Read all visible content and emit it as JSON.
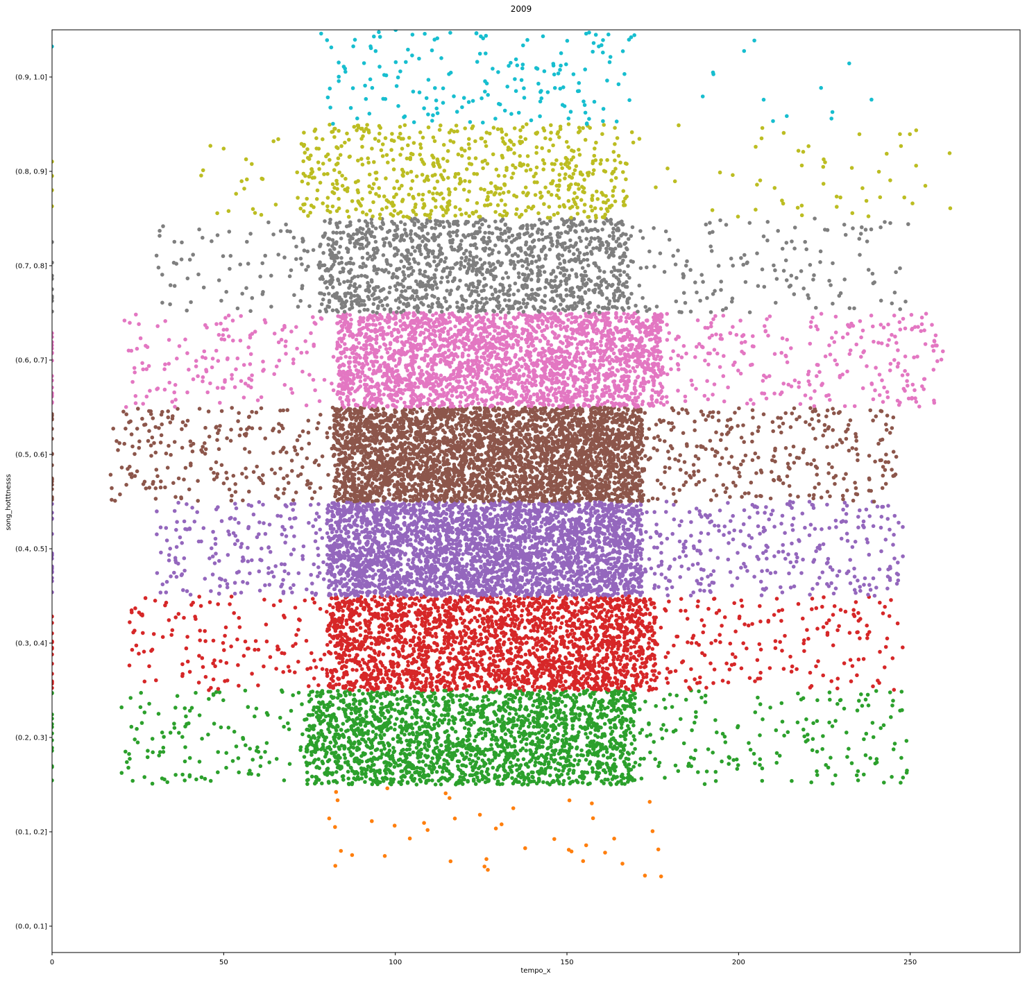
{
  "chart_data": {
    "type": "scatter",
    "title": "2009",
    "xlabel": "tempo_x",
    "ylabel": "song_hotttnesss",
    "xlim": [
      0,
      282
    ],
    "x_ticks": [
      "0",
      "50",
      "100",
      "150",
      "200",
      "250"
    ],
    "x_tick_values": [
      0,
      50,
      100,
      150,
      200,
      250
    ],
    "y_categories": [
      "(0.0, 0.1]",
      "(0.1, 0.2]",
      "(0.2, 0.3]",
      "(0.3, 0.4]",
      "(0.4, 0.5]",
      "(0.5, 0.6]",
      "(0.6, 0.7]",
      "(0.7, 0.8]",
      "(0.8, 0.9]",
      "(0.9, 1.0]"
    ],
    "jitter": 0.5,
    "grid": false,
    "legend": "none",
    "series": [
      {
        "category": "(0.0, 0.1]",
        "color": "#1f77b4",
        "count": 0,
        "core_range": [
          0,
          0
        ],
        "spread_range": [
          0,
          0
        ]
      },
      {
        "category": "(0.1, 0.2]",
        "color": "#ff7f0e",
        "count": 42,
        "core_range": [
          80,
          180
        ],
        "spread_range": [
          80,
          180
        ]
      },
      {
        "category": "(0.2, 0.3]",
        "color": "#2ca02c",
        "count": 2400,
        "core_range": [
          74,
          170
        ],
        "spread_range": [
          20,
          250
        ]
      },
      {
        "category": "(0.3, 0.4]",
        "color": "#d62728",
        "count": 2700,
        "core_range": [
          80,
          176
        ],
        "spread_range": [
          22,
          248
        ]
      },
      {
        "category": "(0.4, 0.5]",
        "color": "#9467bd",
        "count": 3800,
        "core_range": [
          80,
          172
        ],
        "spread_range": [
          30,
          248
        ]
      },
      {
        "category": "(0.5, 0.6]",
        "color": "#8c564b",
        "count": 4200,
        "core_range": [
          82,
          172
        ],
        "spread_range": [
          17,
          246
        ]
      },
      {
        "category": "(0.6, 0.7]",
        "color": "#e377c2",
        "count": 3000,
        "core_range": [
          83,
          178
        ],
        "spread_range": [
          21,
          260
        ]
      },
      {
        "category": "(0.7, 0.8]",
        "color": "#7f7f7f",
        "count": 1600,
        "core_range": [
          78,
          168
        ],
        "spread_range": [
          30,
          250
        ]
      },
      {
        "category": "(0.8, 0.9]",
        "color": "#bcbd22",
        "count": 720,
        "core_range": [
          72,
          168
        ],
        "spread_range": [
          43,
          262
        ]
      },
      {
        "category": "(0.9, 1.0]",
        "color": "#17becf",
        "count": 190,
        "core_range": [
          80,
          170
        ],
        "spread_range": [
          65,
          242
        ]
      }
    ]
  }
}
